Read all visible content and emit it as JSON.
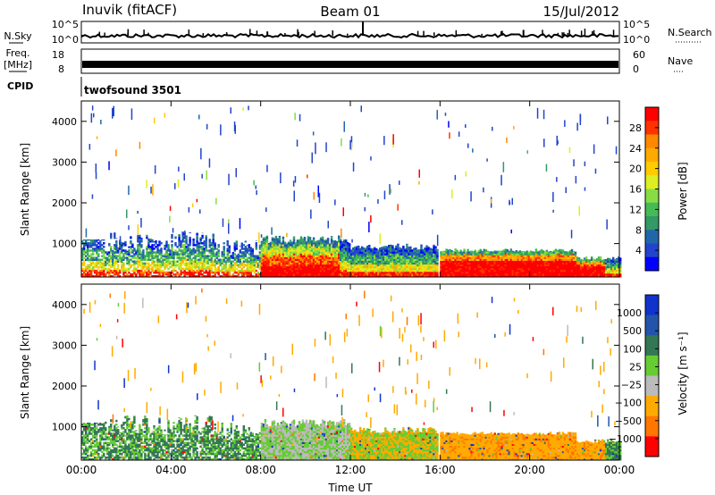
{
  "header": {
    "station": "Inuvik (fitACF)",
    "beam": "Beam 01",
    "date": "15/Jul/2012"
  },
  "aux_panels": {
    "nsky": {
      "label": "N.Sky",
      "tick_top": "10^5",
      "tick_bottom": "10^0"
    },
    "nsearch": {
      "label": "N.Search",
      "tick_top": "10^5",
      "tick_bottom": "10^0"
    },
    "freq": {
      "label_line1": "Freq.",
      "label_line2": "[MHz]",
      "tick_top": "18",
      "tick_bottom": "8"
    },
    "nave": {
      "label": "Nave",
      "tick_top": "60",
      "tick_bottom": "0"
    },
    "cpid": {
      "label": "CPID",
      "value": "twofsound 3501"
    }
  },
  "colorbars": {
    "power": {
      "label": "Power [dB]",
      "ticks": [
        "28",
        "24",
        "20",
        "16",
        "12",
        "8",
        "4"
      ],
      "colors": [
        "#ff0000",
        "#ff3300",
        "#ff8800",
        "#ffaa00",
        "#ffcc00",
        "#ddee22",
        "#88dd44",
        "#44bb55",
        "#339966",
        "#2266aa",
        "#2244cc",
        "#0000ff"
      ]
    },
    "velocity": {
      "label": "Velocity [m s⁻¹]",
      "ticks": [
        "1000",
        "500",
        "100",
        "25",
        "−25",
        "−100",
        "−500",
        "−1000"
      ],
      "colors": [
        "#1133cc",
        "#2255aa",
        "#337755",
        "#66cc33",
        "#bbbbbb",
        "#ffaa00",
        "#ff7700",
        "#ff0000"
      ]
    }
  },
  "chart_data": [
    {
      "type": "heatmap",
      "name": "power",
      "ylabel": "Slant Range [km]",
      "xlabel": "",
      "ylim": [
        180,
        4500
      ],
      "xlim": [
        0,
        24
      ],
      "yticks": [
        "1000",
        "2000",
        "3000",
        "4000"
      ],
      "xticks": [
        "00:00",
        "04:00",
        "08:00",
        "12:00",
        "16:00",
        "20:00",
        "00:00"
      ],
      "colorbar": "Power [dB]",
      "clim": [
        0,
        32
      ]
    },
    {
      "type": "heatmap",
      "name": "velocity",
      "ylabel": "Slant Range [km]",
      "xlabel": "Time UT",
      "ylim": [
        180,
        4500
      ],
      "xlim": [
        0,
        24
      ],
      "yticks": [
        "1000",
        "2000",
        "3000",
        "4000"
      ],
      "xticks": [
        "00:00",
        "04:00",
        "08:00",
        "12:00",
        "16:00",
        "20:00",
        "00:00"
      ],
      "colorbar": "Velocity [m s⁻¹]",
      "clim": [
        -1000,
        1000
      ]
    }
  ]
}
